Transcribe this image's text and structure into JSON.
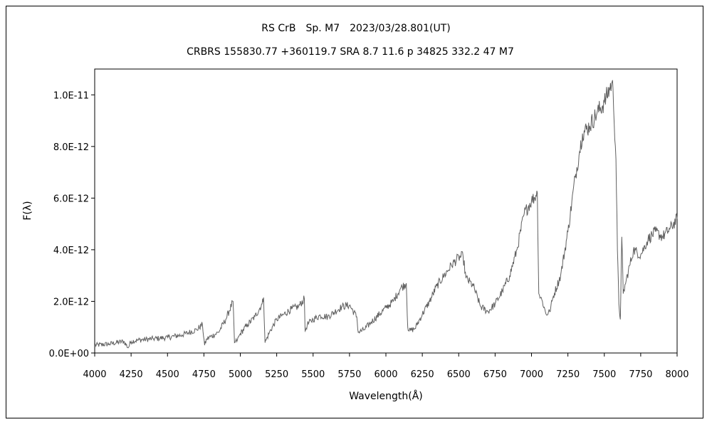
{
  "chart_data": {
    "type": "line",
    "title": "RS CrB　Sp. M7　2023/03/28.801(UT)",
    "subtitle": "CRBRS 155830.77 +360119.7 SRA 8.7 11.6 p 34825 332.2 47 M7",
    "xlabel": "Wavelength(Å)",
    "ylabel": "F(λ)",
    "xlim": [
      4000,
      8000
    ],
    "ylim": [
      0,
      1.1e-11
    ],
    "x_ticks": [
      4000,
      4250,
      4500,
      4750,
      5000,
      5250,
      5500,
      5750,
      6000,
      6250,
      6500,
      6750,
      7000,
      7250,
      7500,
      7750,
      8000
    ],
    "x_tick_labels": [
      "4000",
      "4250",
      "4500",
      "4750",
      "5000",
      "5250",
      "5500",
      "5750",
      "6000",
      "6250",
      "6500",
      "6750",
      "7000",
      "7250",
      "7500",
      "7750",
      "8000"
    ],
    "y_ticks": [
      0,
      2e-12,
      4e-12,
      6e-12,
      8e-12,
      1e-11
    ],
    "y_tick_labels": [
      "0.0E+00",
      "2.0E-12",
      "4.0E-12",
      "6.0E-12",
      "8.0E-12",
      "1.0E-11"
    ],
    "grid": false,
    "series": [
      {
        "color": "#606060",
        "x": [
          4000,
          4100,
          4200,
          4230,
          4250,
          4300,
          4400,
          4500,
          4600,
          4700,
          4740,
          4755,
          4770,
          4850,
          4900,
          4950,
          4960,
          4980,
          5000,
          5050,
          5100,
          5150,
          5160,
          5170,
          5200,
          5250,
          5300,
          5350,
          5400,
          5440,
          5445,
          5460,
          5500,
          5550,
          5600,
          5650,
          5700,
          5750,
          5800,
          5810,
          5850,
          5900,
          6000,
          6050,
          6100,
          6140,
          6150,
          6160,
          6200,
          6250,
          6300,
          6350,
          6400,
          6450,
          6500,
          6530,
          6550,
          6600,
          6650,
          6700,
          6750,
          6800,
          6850,
          6900,
          6950,
          7000,
          7030,
          7040,
          7050,
          7075,
          7100,
          7125,
          7150,
          7200,
          7250,
          7300,
          7330,
          7350,
          7400,
          7450,
          7500,
          7550,
          7560,
          7580,
          7590,
          7600,
          7610,
          7620,
          7630,
          7650,
          7700,
          7750,
          7800,
          7850,
          7900,
          7950,
          8000
        ],
        "y": [
          3e-13,
          3.5e-13,
          4.5e-13,
          2e-13,
          4.5e-13,
          5e-13,
          5.5e-13,
          6e-13,
          7e-13,
          9e-13,
          1.1e-12,
          3e-13,
          5.5e-13,
          8e-13,
          1.3e-12,
          2e-12,
          4e-13,
          5e-13,
          7.5e-13,
          1.1e-12,
          1.4e-12,
          1.9e-12,
          2.15e-12,
          4e-13,
          8e-13,
          1.3e-12,
          1.5e-12,
          1.7e-12,
          1.8e-12,
          2.1e-12,
          8.5e-13,
          1.1e-12,
          1.3e-12,
          1.45e-12,
          1.4e-12,
          1.6e-12,
          1.8e-12,
          1.85e-12,
          1.4e-12,
          8e-13,
          9e-13,
          1.2e-12,
          1.75e-12,
          2e-12,
          2.5e-12,
          2.7e-12,
          1e-12,
          8.5e-13,
          9.5e-13,
          1.5e-12,
          2e-12,
          2.6e-12,
          3e-12,
          3.4e-12,
          3.7e-12,
          3.75e-12,
          2.9e-12,
          2.6e-12,
          1.8e-12,
          1.6e-12,
          1.9e-12,
          2.4e-12,
          3e-12,
          4e-12,
          5.4e-12,
          5.9e-12,
          6.1e-12,
          6.2e-12,
          2.3e-12,
          2e-12,
          1.5e-12,
          1.6e-12,
          2.2e-12,
          3e-12,
          4.7e-12,
          6.8e-12,
          7.8e-12,
          8.5e-12,
          8.8e-12,
          9.3e-12,
          9.7e-12,
          1.045e-11,
          1.02e-11,
          7.5e-12,
          4e-12,
          1.9e-12,
          1.3e-12,
          4.5e-12,
          2.3e-12,
          2.8e-12,
          4e-12,
          3.8e-12,
          4.4e-12,
          4.7e-12,
          4.5e-12,
          4.8e-12,
          5.2e-12
        ]
      }
    ]
  }
}
